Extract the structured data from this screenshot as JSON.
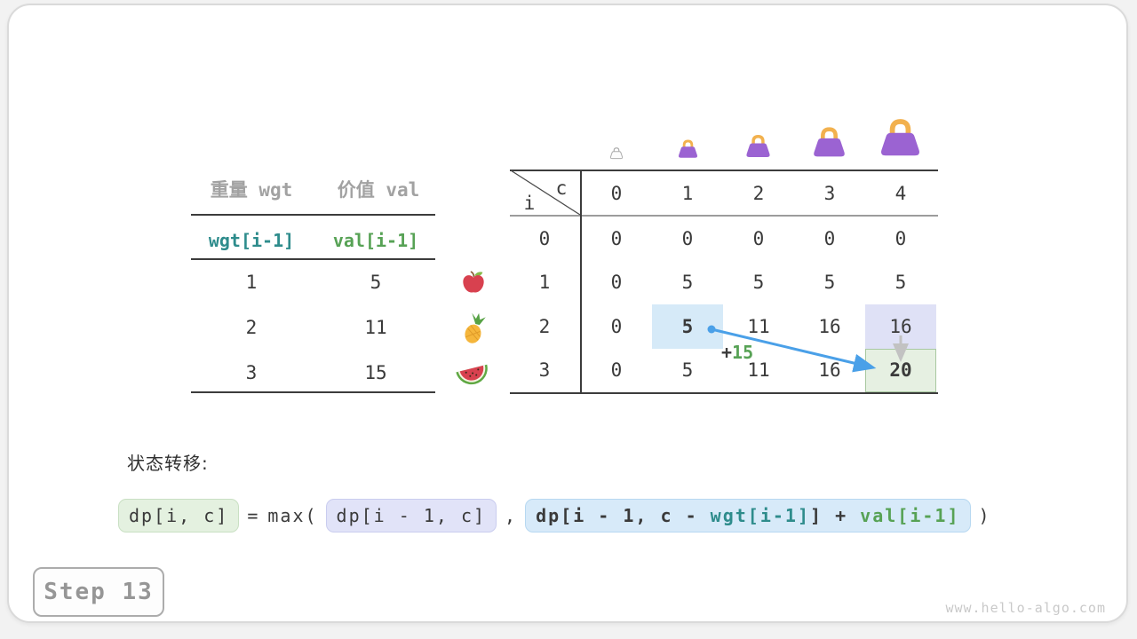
{
  "card": {
    "step_label": "Step 13",
    "website": "www.hello-algo.com"
  },
  "item_table": {
    "weight_header": "重量 wgt",
    "value_header": "价值 val",
    "weight_formula": "wgt[i-1]",
    "value_formula": "val[i-1]",
    "rows": [
      {
        "fruit": "apple",
        "weight": "1",
        "value": "5"
      },
      {
        "fruit": "pineapple",
        "weight": "2",
        "value": "11"
      },
      {
        "fruit": "watermelon",
        "weight": "3",
        "value": "15"
      }
    ]
  },
  "dp_table": {
    "row_var": "i",
    "col_var": "c",
    "col_headers": [
      "0",
      "1",
      "2",
      "3",
      "4"
    ],
    "row_headers": [
      "0",
      "1",
      "2",
      "3"
    ],
    "values": [
      [
        "0",
        "0",
        "0",
        "0",
        "0"
      ],
      [
        "0",
        "5",
        "5",
        "5",
        "5"
      ],
      [
        "0",
        "5",
        "11",
        "16",
        "16"
      ],
      [
        "0",
        "5",
        "11",
        "16",
        "20"
      ]
    ],
    "highlights": [
      {
        "row": 2,
        "col": 1,
        "style": "source-blue",
        "bold": true
      },
      {
        "row": 2,
        "col": 4,
        "style": "alt-lavender",
        "bold": false
      },
      {
        "row": 3,
        "col": 4,
        "style": "result-green",
        "bold": true
      }
    ],
    "bags": [
      "bag-empty",
      "bag-capacity-1",
      "bag-capacity-2",
      "bag-capacity-3",
      "bag-capacity-4"
    ],
    "transfer_annotation": {
      "plus": "+",
      "value": "15"
    }
  },
  "transition": {
    "label": "状态转移:",
    "lhs": "dp[i, c]",
    "equals": "=",
    "max_open": "max(",
    "arg1": "dp[i - 1, c]",
    "comma": ",",
    "arg2_prefix": "dp[i - 1, c - ",
    "arg2_wgt": "wgt[i-1]",
    "arg2_mid": "] + ",
    "arg2_val": "val[i-1]",
    "close_paren": ")"
  },
  "colors": {
    "ink": "#3A3A3A",
    "muted_header": "#A2A2A2",
    "teal_accent": "#2E8C8C",
    "green_accent": "#57A255",
    "arrow_blue": "#4AA0E8",
    "arrow_gray": "#C2C2C2",
    "highlight_blue": "#D6EAF8",
    "highlight_lavender": "#DFE1F6",
    "highlight_green": "#E6F0E2",
    "bag_purple": "#9B63D2",
    "bag_handle_orange": "#F2B14E"
  }
}
